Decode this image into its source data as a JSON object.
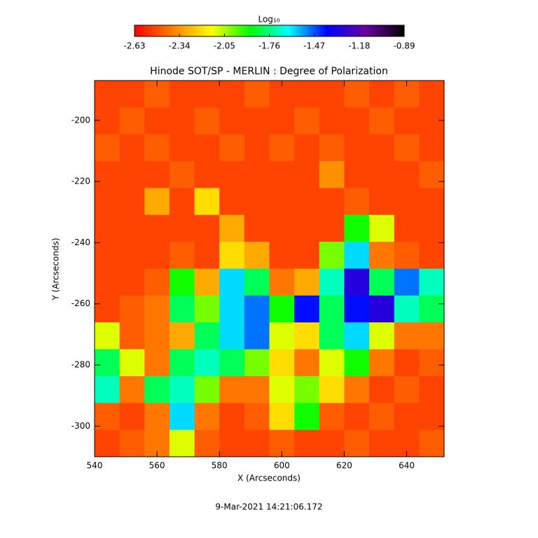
{
  "chart_data": {
    "type": "heatmap",
    "title": "Hinode SOT/SP - MERLIN : Degree of Polarization",
    "x_label": "X (Arcseconds)",
    "y_label": "Y (Arcseconds)",
    "footer": "9-Mar-2021 14:21:06.172",
    "xlim": [
      540,
      652
    ],
    "xticks": [
      540,
      560,
      580,
      600,
      620,
      640
    ],
    "ylim": [
      -310,
      -187
    ],
    "yticks": [
      -300,
      -280,
      -260,
      -240,
      -220,
      -200
    ],
    "colorbar": {
      "label": "Log₁₀",
      "clim": [
        -2.63,
        -0.89
      ],
      "ticks": [
        -2.63,
        -2.34,
        -2.05,
        -1.76,
        -1.47,
        -1.18,
        -0.89
      ],
      "colormap": [
        "#ff0000",
        "#ff8000",
        "#ffff00",
        "#00ff00",
        "#00ffff",
        "#0000ff",
        "#6a00a0",
        "#000000"
      ]
    },
    "z": [
      [
        -2.5,
        -2.5,
        -2.45,
        -2.5,
        -2.5,
        -2.5,
        -2.45,
        -2.5,
        -2.5,
        -2.5,
        -2.45,
        -2.5,
        -2.45,
        -2.5
      ],
      [
        -2.5,
        -2.45,
        -2.5,
        -2.5,
        -2.45,
        -2.5,
        -2.5,
        -2.5,
        -2.45,
        -2.5,
        -2.5,
        -2.45,
        -2.5,
        -2.5
      ],
      [
        -2.45,
        -2.5,
        -2.45,
        -2.5,
        -2.5,
        -2.45,
        -2.5,
        -2.45,
        -2.5,
        -2.45,
        -2.5,
        -2.5,
        -2.45,
        -2.5
      ],
      [
        -2.5,
        -2.5,
        -2.5,
        -2.45,
        -2.5,
        -2.5,
        -2.5,
        -2.5,
        -2.5,
        -2.35,
        -2.5,
        -2.5,
        -2.5,
        -2.45
      ],
      [
        -2.5,
        -2.5,
        -2.3,
        -2.5,
        -2.2,
        -2.5,
        -2.5,
        -2.5,
        -2.5,
        -2.5,
        -2.45,
        -2.5,
        -2.5,
        -2.5
      ],
      [
        -2.5,
        -2.5,
        -2.5,
        -2.5,
        -2.5,
        -2.3,
        -2.5,
        -2.5,
        -2.5,
        -2.5,
        -1.9,
        -2.1,
        -2.5,
        -2.5
      ],
      [
        -2.5,
        -2.5,
        -2.5,
        -2.45,
        -2.5,
        -2.2,
        -2.3,
        -2.5,
        -2.5,
        -2.0,
        -1.6,
        -2.4,
        -2.45,
        -2.5
      ],
      [
        -2.5,
        -2.5,
        -2.45,
        -1.9,
        -2.3,
        -1.6,
        -1.8,
        -2.4,
        -2.3,
        -1.7,
        -1.3,
        -1.8,
        -1.5,
        -1.7
      ],
      [
        -2.5,
        -2.45,
        -2.4,
        -1.8,
        -2.0,
        -1.6,
        -1.5,
        -1.9,
        -1.4,
        -1.8,
        -1.4,
        -1.3,
        -1.7,
        -1.8
      ],
      [
        -2.1,
        -2.45,
        -2.4,
        -2.3,
        -1.8,
        -1.6,
        -1.5,
        -2.1,
        -2.2,
        -1.8,
        -1.6,
        -2.1,
        -2.4,
        -2.4
      ],
      [
        -1.8,
        -2.1,
        -2.4,
        -1.8,
        -1.7,
        -1.8,
        -2.0,
        -2.2,
        -2.4,
        -2.1,
        -1.9,
        -2.4,
        -2.5,
        -2.45
      ],
      [
        -1.7,
        -2.4,
        -1.8,
        -1.7,
        -2.0,
        -2.4,
        -2.4,
        -2.1,
        -2.0,
        -2.2,
        -2.4,
        -2.5,
        -2.45,
        -2.5
      ],
      [
        -2.45,
        -2.5,
        -2.4,
        -1.6,
        -2.4,
        -2.5,
        -2.45,
        -2.2,
        -1.9,
        -2.45,
        -2.5,
        -2.45,
        -2.5,
        -2.5
      ],
      [
        -2.5,
        -2.45,
        -2.4,
        -2.1,
        -2.45,
        -2.5,
        -2.5,
        -2.45,
        -2.5,
        -2.5,
        -2.45,
        -2.5,
        -2.5,
        -2.45
      ]
    ]
  }
}
